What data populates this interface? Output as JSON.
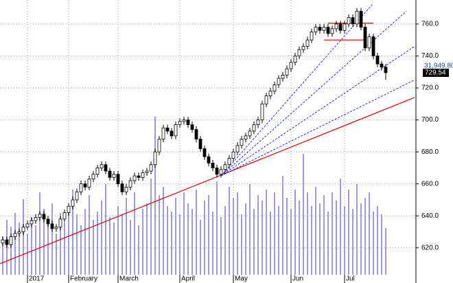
{
  "chart_data": {
    "type": "candlestick",
    "categories": [
      null,
      null,
      null,
      null,
      null,
      null,
      "2017",
      null,
      null,
      null,
      null,
      null,
      null,
      null,
      null,
      null,
      "February",
      null,
      null,
      null,
      null,
      null,
      null,
      null,
      null,
      null,
      null,
      null,
      "March",
      null,
      null,
      null,
      null,
      null,
      null,
      null,
      null,
      null,
      null,
      null,
      null,
      null,
      null,
      "April",
      null,
      null,
      null,
      null,
      null,
      null,
      null,
      null,
      null,
      null,
      null,
      null,
      "May",
      null,
      null,
      null,
      null,
      null,
      null,
      null,
      null,
      null,
      null,
      null,
      null,
      null,
      "Jun",
      null,
      null,
      null,
      null,
      null,
      null,
      null,
      null,
      null,
      null,
      null,
      null,
      "Jul",
      null,
      null,
      null,
      null,
      null,
      null,
      null,
      null,
      null,
      null
    ],
    "open": [
      623,
      625,
      622,
      627,
      629,
      630,
      633,
      635,
      637,
      639,
      641,
      638,
      635,
      632,
      633,
      638,
      642,
      646,
      650,
      655,
      660,
      658,
      663,
      666,
      670,
      672,
      668,
      664,
      666,
      660,
      655,
      658,
      662,
      665,
      664,
      667,
      668,
      672,
      680,
      688,
      695,
      693,
      690,
      697,
      699,
      700,
      697,
      694,
      688,
      682,
      677,
      673,
      670,
      666,
      669,
      672,
      676,
      680,
      684,
      688,
      690,
      693,
      697,
      700,
      710,
      715,
      718,
      722,
      726,
      728,
      732,
      736,
      740,
      744,
      746,
      750,
      755,
      758,
      756,
      758,
      754,
      757,
      760,
      756,
      760,
      764,
      760,
      768,
      758,
      745,
      752,
      740,
      735,
      733
    ],
    "high": [
      627,
      627,
      629,
      631,
      632,
      635,
      637,
      639,
      641,
      643,
      643,
      640,
      637,
      635,
      640,
      644,
      648,
      652,
      657,
      662,
      662,
      665,
      668,
      672,
      674,
      674,
      670,
      668,
      668,
      662,
      660,
      664,
      667,
      667,
      669,
      670,
      674,
      682,
      690,
      697,
      697,
      695,
      699,
      701,
      702,
      702,
      699,
      696,
      690,
      684,
      679,
      675,
      672,
      671,
      674,
      678,
      682,
      686,
      690,
      692,
      695,
      699,
      702,
      712,
      717,
      720,
      724,
      728,
      730,
      734,
      738,
      742,
      746,
      748,
      752,
      757,
      760,
      760,
      760,
      760,
      759,
      762,
      762,
      762,
      766,
      766,
      770,
      770,
      760,
      754,
      754,
      742,
      737,
      735
    ],
    "low": [
      621,
      620,
      620,
      625,
      627,
      628,
      631,
      633,
      635,
      637,
      636,
      633,
      630,
      630,
      631,
      636,
      640,
      644,
      648,
      653,
      656,
      656,
      661,
      664,
      668,
      666,
      662,
      662,
      658,
      653,
      653,
      656,
      660,
      662,
      662,
      665,
      666,
      670,
      678,
      686,
      691,
      688,
      688,
      695,
      697,
      695,
      692,
      686,
      680,
      675,
      671,
      668,
      664,
      664,
      667,
      670,
      674,
      678,
      682,
      686,
      688,
      691,
      695,
      698,
      708,
      713,
      716,
      720,
      724,
      726,
      730,
      734,
      738,
      742,
      744,
      748,
      753,
      754,
      754,
      752,
      752,
      755,
      754,
      754,
      758,
      758,
      758,
      756,
      743,
      743,
      738,
      733,
      731,
      725
    ],
    "close": [
      625,
      622,
      627,
      629,
      630,
      633,
      635,
      637,
      639,
      641,
      638,
      635,
      632,
      633,
      638,
      642,
      646,
      650,
      655,
      660,
      658,
      663,
      666,
      670,
      672,
      668,
      664,
      666,
      660,
      655,
      658,
      662,
      665,
      664,
      667,
      668,
      672,
      680,
      688,
      695,
      693,
      690,
      697,
      699,
      700,
      697,
      694,
      688,
      682,
      677,
      673,
      670,
      666,
      669,
      672,
      676,
      680,
      684,
      688,
      690,
      693,
      697,
      700,
      710,
      715,
      718,
      722,
      726,
      728,
      732,
      736,
      740,
      744,
      746,
      750,
      755,
      758,
      756,
      758,
      754,
      757,
      760,
      756,
      760,
      764,
      760,
      768,
      758,
      745,
      752,
      740,
      735,
      733,
      729.54
    ],
    "volume": [
      28,
      40,
      35,
      45,
      38,
      55,
      30,
      42,
      36,
      60,
      48,
      40,
      52,
      30,
      45,
      38,
      50,
      62,
      44,
      36,
      48,
      58,
      40,
      46,
      54,
      66,
      42,
      38,
      50,
      44,
      56,
      40,
      60,
      36,
      48,
      52,
      70,
      115,
      58,
      64,
      50,
      46,
      56,
      44,
      60,
      52,
      48,
      62,
      40,
      54,
      58,
      46,
      68,
      42,
      50,
      64,
      56,
      60,
      44,
      52,
      66,
      48,
      58,
      54,
      62,
      46,
      60,
      50,
      72,
      56,
      48,
      62,
      54,
      88,
      60,
      50,
      64,
      52,
      58,
      46,
      60,
      54,
      70,
      50,
      62,
      48,
      66,
      52,
      56,
      60,
      46,
      50,
      44,
      34
    ],
    "volume_color": "#9a9ae0",
    "ylim": [
      598,
      775
    ],
    "yticks": [
      {
        "value": 620,
        "label": "620.0"
      },
      {
        "value": 640,
        "label": "640.0"
      },
      {
        "value": 660,
        "label": "660.0"
      },
      {
        "value": 680,
        "label": "680.0"
      },
      {
        "value": 700,
        "label": "700.0"
      },
      {
        "value": 720,
        "label": "720.0"
      },
      {
        "value": 740,
        "label": "740.0"
      },
      {
        "value": 760,
        "label": "760.0"
      }
    ],
    "grid": true,
    "trendlines": [
      {
        "color": "#e00000",
        "style": "solid",
        "points": [
          [
            -0.7,
            610
          ],
          [
            100,
            714
          ]
        ]
      },
      {
        "color": "#2030d0",
        "style": "dashed",
        "points": [
          [
            53,
            665
          ],
          [
            90,
            773
          ]
        ]
      },
      {
        "color": "#2030d0",
        "style": "dashed",
        "points": [
          [
            53,
            665
          ],
          [
            98,
            768
          ]
        ]
      },
      {
        "color": "#2030d0",
        "style": "dashed",
        "points": [
          [
            53,
            665
          ],
          [
            100,
            746
          ]
        ]
      },
      {
        "color": "#2030d0",
        "style": "dashed",
        "points": [
          [
            53,
            665
          ],
          [
            100,
            725
          ]
        ]
      },
      {
        "color": "#e00000",
        "style": "solid",
        "points": [
          [
            79,
            760.5
          ],
          [
            90,
            760.5
          ]
        ]
      },
      {
        "color": "#e00000",
        "style": "solid",
        "points": [
          [
            78,
            750
          ],
          [
            88,
            750
          ]
        ]
      }
    ],
    "annotations": [
      "31,949.80",
      "729.54"
    ]
  }
}
